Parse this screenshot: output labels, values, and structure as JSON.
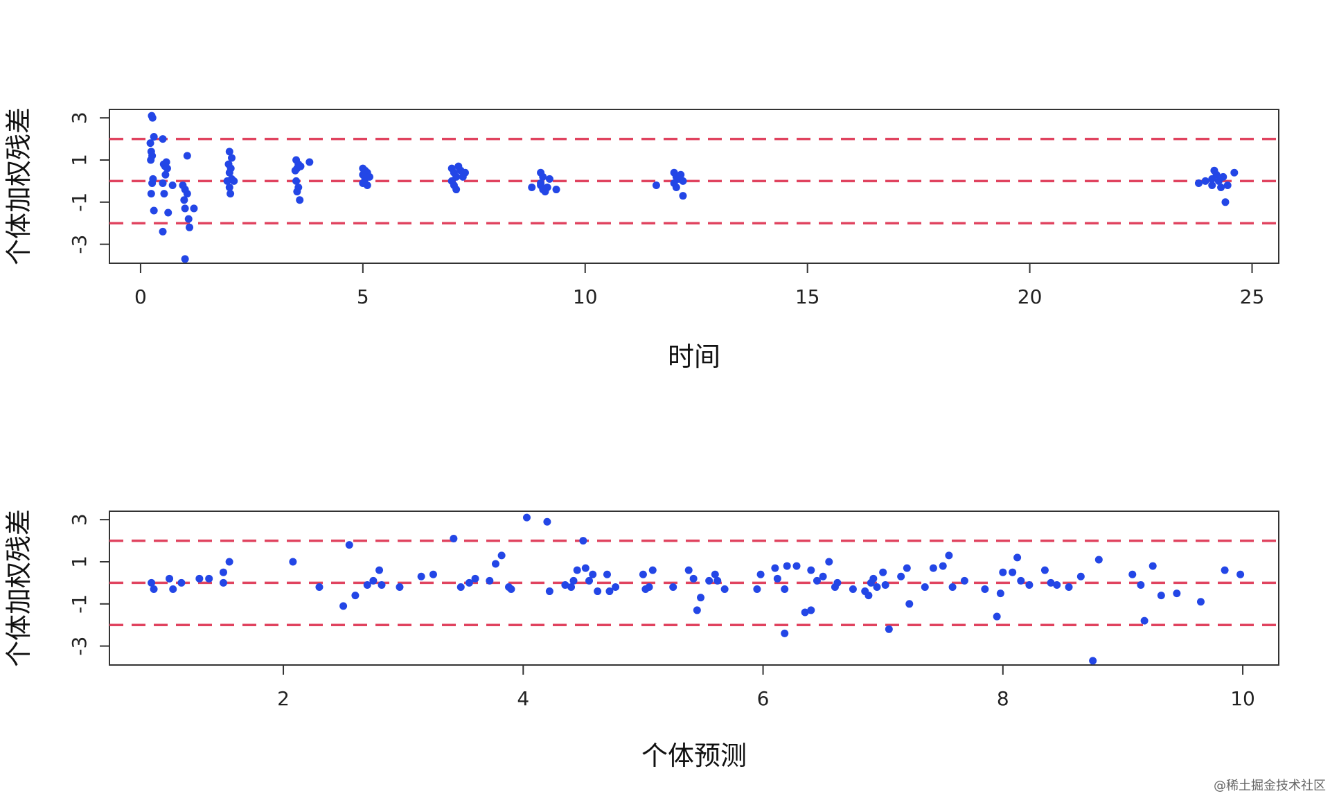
{
  "colors": {
    "points": "#2346e6",
    "reference": "#e0435f",
    "axes": "#333333"
  },
  "watermark": "@稀土掘金技术社区",
  "chart_data": [
    {
      "type": "scatter",
      "xlabel": "时间",
      "ylabel": "个体加权残差",
      "xlim": [
        -0.7,
        25.6
      ],
      "ylim": [
        -3.9,
        3.4
      ],
      "xticks": [
        0,
        5,
        10,
        15,
        20,
        25
      ],
      "yticks": [
        -3,
        -1,
        1,
        3
      ],
      "hlines": [
        -2,
        0,
        2
      ],
      "points": [
        [
          0.25,
          3.1
        ],
        [
          0.27,
          3.0
        ],
        [
          0.22,
          1.8
        ],
        [
          0.24,
          1.4
        ],
        [
          0.26,
          1.2
        ],
        [
          0.23,
          1.0
        ],
        [
          0.3,
          2.1
        ],
        [
          0.28,
          0.1
        ],
        [
          0.26,
          -0.1
        ],
        [
          0.24,
          -0.6
        ],
        [
          0.3,
          -1.4
        ],
        [
          0.5,
          2.0
        ],
        [
          0.52,
          0.8
        ],
        [
          0.55,
          0.7
        ],
        [
          0.58,
          0.9
        ],
        [
          0.6,
          0.6
        ],
        [
          0.56,
          0.3
        ],
        [
          0.5,
          -0.1
        ],
        [
          0.53,
          -0.6
        ],
        [
          0.5,
          -2.4
        ],
        [
          0.62,
          -1.5
        ],
        [
          0.72,
          -0.2
        ],
        [
          0.95,
          -0.2
        ],
        [
          1.0,
          -0.4
        ],
        [
          1.05,
          -0.6
        ],
        [
          0.98,
          -0.9
        ],
        [
          1.0,
          -1.3
        ],
        [
          1.08,
          -1.8
        ],
        [
          1.1,
          -2.2
        ],
        [
          1.2,
          -1.3
        ],
        [
          1.05,
          1.2
        ],
        [
          1.0,
          -3.7
        ],
        [
          2.0,
          1.4
        ],
        [
          2.05,
          1.1
        ],
        [
          1.98,
          0.8
        ],
        [
          2.03,
          0.6
        ],
        [
          2.0,
          0.4
        ],
        [
          2.05,
          0.1
        ],
        [
          2.0,
          -0.3
        ],
        [
          2.02,
          -0.6
        ],
        [
          1.95,
          0.0
        ],
        [
          2.1,
          0.0
        ],
        [
          3.5,
          1.0
        ],
        [
          3.55,
          0.8
        ],
        [
          3.52,
          0.6
        ],
        [
          3.48,
          0.5
        ],
        [
          3.6,
          0.7
        ],
        [
          3.5,
          0.0
        ],
        [
          3.55,
          -0.3
        ],
        [
          3.52,
          -0.5
        ],
        [
          3.58,
          -0.9
        ],
        [
          3.8,
          0.9
        ],
        [
          5.0,
          0.6
        ],
        [
          5.05,
          0.5
        ],
        [
          5.1,
          0.4
        ],
        [
          5.0,
          0.3
        ],
        [
          5.05,
          0.1
        ],
        [
          5.0,
          -0.1
        ],
        [
          5.1,
          -0.2
        ],
        [
          5.15,
          0.2
        ],
        [
          7.0,
          0.6
        ],
        [
          7.05,
          0.4
        ],
        [
          7.1,
          0.2
        ],
        [
          7.0,
          0.0
        ],
        [
          7.05,
          -0.2
        ],
        [
          7.1,
          -0.4
        ],
        [
          7.15,
          0.7
        ],
        [
          7.2,
          0.5
        ],
        [
          7.3,
          0.4
        ],
        [
          7.25,
          0.2
        ],
        [
          8.8,
          -0.3
        ],
        [
          9.0,
          0.4
        ],
        [
          9.05,
          0.2
        ],
        [
          9.0,
          -0.2
        ],
        [
          9.05,
          -0.4
        ],
        [
          9.1,
          -0.5
        ],
        [
          9.15,
          -0.3
        ],
        [
          9.2,
          0.1
        ],
        [
          9.35,
          -0.4
        ],
        [
          9.0,
          -0.1
        ],
        [
          11.6,
          -0.2
        ],
        [
          12.0,
          0.4
        ],
        [
          12.05,
          0.2
        ],
        [
          12.1,
          0.1
        ],
        [
          12.0,
          -0.1
        ],
        [
          12.05,
          -0.3
        ],
        [
          12.15,
          0.3
        ],
        [
          12.2,
          0.0
        ],
        [
          12.2,
          -0.7
        ],
        [
          23.8,
          -0.1
        ],
        [
          23.95,
          0.0
        ],
        [
          24.1,
          0.1
        ],
        [
          24.15,
          0.5
        ],
        [
          24.2,
          0.3
        ],
        [
          24.25,
          0.0
        ],
        [
          24.3,
          -0.3
        ],
        [
          24.35,
          0.2
        ],
        [
          24.4,
          -1.0
        ],
        [
          24.45,
          -0.2
        ],
        [
          24.6,
          0.4
        ],
        [
          24.1,
          -0.2
        ]
      ]
    },
    {
      "type": "scatter",
      "xlabel": "个体预测",
      "ylabel": "个体加权残差",
      "xlim": [
        0.55,
        10.3
      ],
      "ylim": [
        -3.9,
        3.4
      ],
      "xticks": [
        2,
        4,
        6,
        8,
        10
      ],
      "yticks": [
        -3,
        -1,
        1,
        3
      ],
      "hlines": [
        -2,
        0,
        2
      ],
      "points": [
        [
          0.9,
          0.0
        ],
        [
          0.92,
          -0.3
        ],
        [
          1.05,
          0.2
        ],
        [
          1.08,
          -0.3
        ],
        [
          1.15,
          0.0
        ],
        [
          1.3,
          0.2
        ],
        [
          1.38,
          0.2
        ],
        [
          1.5,
          0.5
        ],
        [
          1.55,
          1.0
        ],
        [
          1.5,
          0.0
        ],
        [
          2.08,
          1.0
        ],
        [
          2.3,
          -0.2
        ],
        [
          2.5,
          -1.1
        ],
        [
          2.55,
          1.8
        ],
        [
          2.6,
          -0.6
        ],
        [
          2.7,
          -0.1
        ],
        [
          2.75,
          0.1
        ],
        [
          2.8,
          0.6
        ],
        [
          2.82,
          -0.1
        ],
        [
          2.97,
          -0.2
        ],
        [
          3.15,
          0.3
        ],
        [
          3.25,
          0.4
        ],
        [
          3.42,
          2.1
        ],
        [
          3.48,
          -0.2
        ],
        [
          3.55,
          0.0
        ],
        [
          3.6,
          0.2
        ],
        [
          3.72,
          0.1
        ],
        [
          3.77,
          0.9
        ],
        [
          3.82,
          1.3
        ],
        [
          3.9,
          -0.3
        ],
        [
          3.88,
          -0.2
        ],
        [
          4.03,
          3.1
        ],
        [
          4.2,
          2.9
        ],
        [
          4.22,
          -0.4
        ],
        [
          4.35,
          -0.1
        ],
        [
          4.4,
          -0.2
        ],
        [
          4.42,
          0.1
        ],
        [
          4.45,
          0.6
        ],
        [
          4.5,
          2.0
        ],
        [
          4.52,
          0.7
        ],
        [
          4.55,
          0.1
        ],
        [
          4.58,
          0.4
        ],
        [
          4.62,
          -0.4
        ],
        [
          4.7,
          0.4
        ],
        [
          4.72,
          -0.4
        ],
        [
          4.77,
          -0.2
        ],
        [
          5.0,
          0.4
        ],
        [
          5.02,
          -0.3
        ],
        [
          5.05,
          -0.2
        ],
        [
          5.08,
          0.6
        ],
        [
          5.25,
          -0.2
        ],
        [
          5.38,
          0.6
        ],
        [
          5.42,
          0.2
        ],
        [
          5.45,
          -1.3
        ],
        [
          5.48,
          -0.7
        ],
        [
          5.55,
          0.1
        ],
        [
          5.6,
          0.4
        ],
        [
          5.62,
          0.1
        ],
        [
          5.68,
          -0.3
        ],
        [
          5.95,
          -0.3
        ],
        [
          5.98,
          0.4
        ],
        [
          6.1,
          0.7
        ],
        [
          6.12,
          0.2
        ],
        [
          6.18,
          -2.4
        ],
        [
          6.18,
          -0.3
        ],
        [
          6.2,
          0.8
        ],
        [
          6.28,
          0.8
        ],
        [
          6.35,
          -1.4
        ],
        [
          6.4,
          -1.3
        ],
        [
          6.4,
          0.6
        ],
        [
          6.45,
          0.1
        ],
        [
          6.5,
          0.3
        ],
        [
          6.55,
          1.0
        ],
        [
          6.6,
          -0.2
        ],
        [
          6.62,
          0.0
        ],
        [
          6.75,
          -0.3
        ],
        [
          6.85,
          -0.4
        ],
        [
          6.88,
          -0.6
        ],
        [
          6.9,
          0.0
        ],
        [
          6.92,
          0.2
        ],
        [
          6.95,
          -0.2
        ],
        [
          7.0,
          0.5
        ],
        [
          7.02,
          -0.1
        ],
        [
          7.05,
          -2.2
        ],
        [
          7.15,
          0.3
        ],
        [
          7.2,
          0.7
        ],
        [
          7.22,
          -1.0
        ],
        [
          7.35,
          -0.2
        ],
        [
          7.42,
          0.7
        ],
        [
          7.5,
          0.8
        ],
        [
          7.55,
          1.3
        ],
        [
          7.58,
          -0.2
        ],
        [
          7.68,
          0.1
        ],
        [
          7.85,
          -0.3
        ],
        [
          7.95,
          -1.6
        ],
        [
          7.98,
          -0.5
        ],
        [
          8.0,
          0.5
        ],
        [
          8.08,
          0.5
        ],
        [
          8.12,
          1.2
        ],
        [
          8.15,
          0.1
        ],
        [
          8.22,
          -0.1
        ],
        [
          8.35,
          0.6
        ],
        [
          8.4,
          0.0
        ],
        [
          8.45,
          -0.1
        ],
        [
          8.55,
          -0.2
        ],
        [
          8.65,
          0.3
        ],
        [
          8.75,
          -3.7
        ],
        [
          8.8,
          1.1
        ],
        [
          9.08,
          0.4
        ],
        [
          9.15,
          -0.1
        ],
        [
          9.18,
          -1.8
        ],
        [
          9.25,
          0.8
        ],
        [
          9.32,
          -0.6
        ],
        [
          9.45,
          -0.5
        ],
        [
          9.65,
          -0.9
        ],
        [
          9.85,
          0.6
        ],
        [
          9.98,
          0.4
        ]
      ]
    }
  ]
}
